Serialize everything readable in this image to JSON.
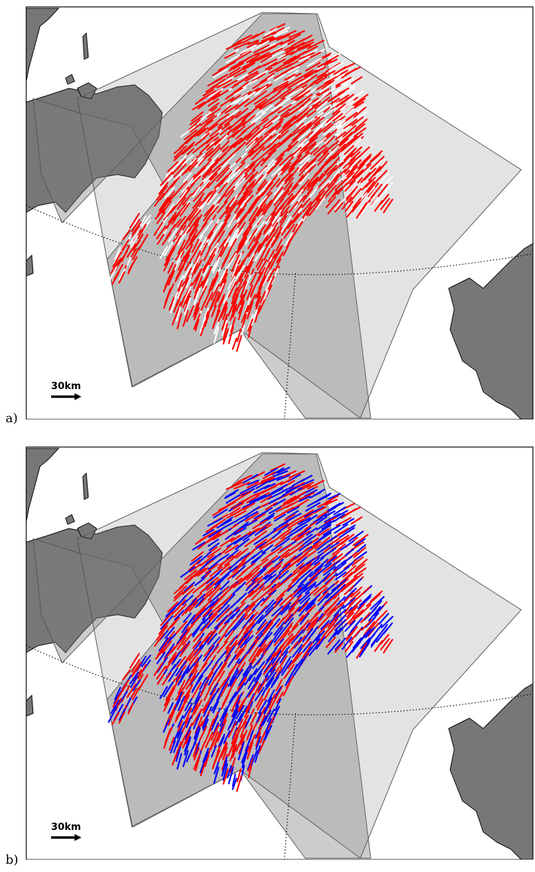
{
  "panels": [
    {
      "label": "a)",
      "scale_bar": "30km",
      "colors": [
        "#ff0000",
        "#ffffff"
      ]
    },
    {
      "label": "b)",
      "scale_bar": "30km",
      "colors": [
        "#ff0000",
        "#0000ff"
      ]
    }
  ],
  "style": {
    "land_color": "#777777",
    "overlay_color": "#808080",
    "frame_color": "#000000"
  }
}
